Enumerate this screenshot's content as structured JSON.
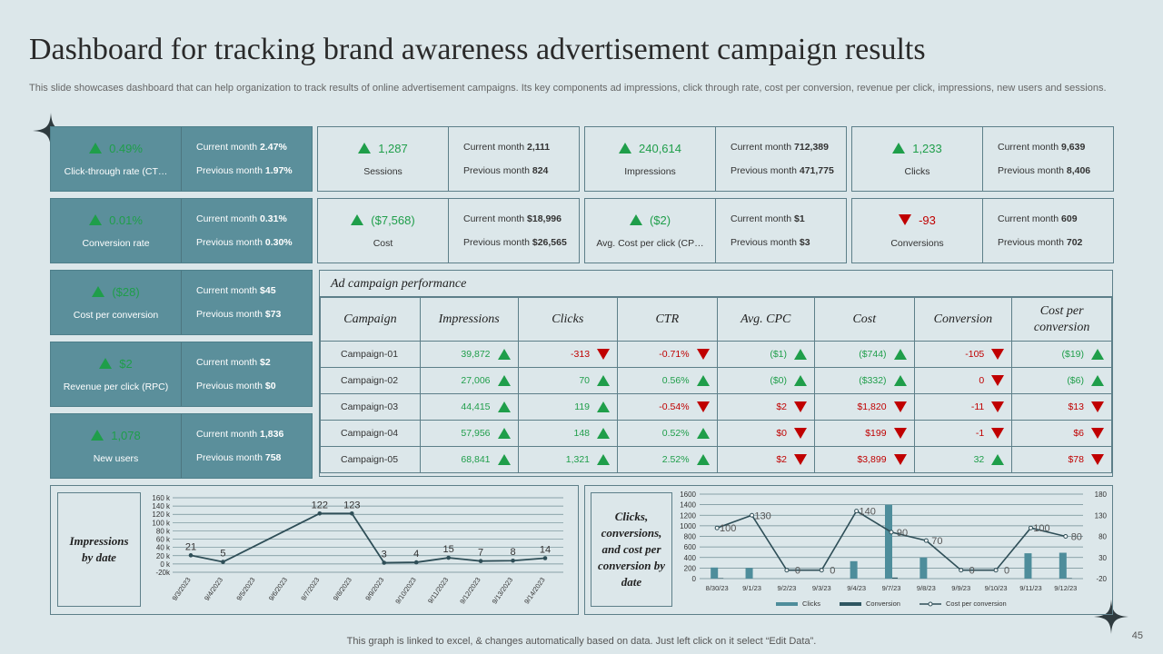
{
  "title": "Dashboard for tracking brand awareness advertisement campaign results",
  "subtitle": "This slide showcases dashboard that can help organization to track results of online advertisement campaigns. Its key components ad impressions, click through rate, cost per conversion, revenue per click, impressions, new users and sessions.",
  "kpi_left": [
    {
      "value": "0.49%",
      "label": "Click-through rate (CT…",
      "current": "Current month ",
      "current_val": "2.47%",
      "previous": "Previous month ",
      "previous_val": "1.97%",
      "trend": "up"
    },
    {
      "value": "0.01%",
      "label": "Conversion rate",
      "current": "Current month ",
      "current_val": "0.31%",
      "previous": "Previous month ",
      "previous_val": "0.30%",
      "trend": "up"
    },
    {
      "value": "($28)",
      "label": "Cost per conversion",
      "current": "Current month ",
      "current_val": "$45",
      "previous": "Previous month ",
      "previous_val": "$73",
      "trend": "up"
    },
    {
      "value": "$2",
      "label": "Revenue per click (RPC)",
      "current": "Current month ",
      "current_val": "$2",
      "previous": "Previous month ",
      "previous_val": "$0",
      "trend": "up"
    },
    {
      "value": "1,078",
      "label": "New users",
      "current": "Current month ",
      "current_val": "1,836",
      "previous": "Previous month ",
      "previous_val": "758",
      "trend": "up"
    }
  ],
  "kpi_top": [
    {
      "value": "1,287",
      "label": "Sessions",
      "current": "Current month ",
      "current_val": "2,111",
      "previous": "Previous month ",
      "previous_val": "824",
      "trend": "up"
    },
    {
      "value": "240,614",
      "label": "Impressions",
      "current": "Current month ",
      "current_val": "712,389",
      "previous": "Previous month ",
      "previous_val": "471,775",
      "trend": "up"
    },
    {
      "value": "1,233",
      "label": "Clicks",
      "current": "Current month ",
      "current_val": "9,639",
      "previous": "Previous month ",
      "previous_val": "8,406",
      "trend": "up"
    },
    {
      "value": "($7,568)",
      "label": "Cost",
      "current": "Current month ",
      "current_val": "$18,996",
      "previous": "Previous month ",
      "previous_val": "$26,565",
      "trend": "up"
    },
    {
      "value": "($2)",
      "label": "Avg. Cost per click (CP…",
      "current": "Current month ",
      "current_val": "$1",
      "previous": "Previous month ",
      "previous_val": "$3",
      "trend": "up"
    },
    {
      "value": "-93",
      "label": "Conversions",
      "current": "Current month ",
      "current_val": "609",
      "previous": "Previous month ",
      "previous_val": "702",
      "trend": "down"
    }
  ],
  "table": {
    "caption": "Ad campaign performance",
    "headers": [
      "Campaign",
      "Impressions",
      "Clicks",
      "CTR",
      "Avg. CPC",
      "Cost",
      "Conversion",
      "Cost per conversion"
    ],
    "rows": [
      [
        [
          "Campaign-01",
          ""
        ],
        [
          "39,872",
          "up"
        ],
        [
          "-313",
          "down"
        ],
        [
          "-0.71%",
          "down"
        ],
        [
          "($1)",
          "up"
        ],
        [
          "($744)",
          "up"
        ],
        [
          "-105",
          "down"
        ],
        [
          "($19)",
          "up"
        ]
      ],
      [
        [
          "Campaign-02",
          ""
        ],
        [
          "27,006",
          "up"
        ],
        [
          "70",
          "up"
        ],
        [
          "0.56%",
          "up"
        ],
        [
          "($0)",
          "up"
        ],
        [
          "($332)",
          "up"
        ],
        [
          "0",
          "down"
        ],
        [
          "($6)",
          "up"
        ]
      ],
      [
        [
          "Campaign-03",
          ""
        ],
        [
          "44,415",
          "up"
        ],
        [
          "119",
          "up"
        ],
        [
          "-0.54%",
          "down"
        ],
        [
          "$2",
          "down"
        ],
        [
          "$1,820",
          "down"
        ],
        [
          "-11",
          "down"
        ],
        [
          "$13",
          "down"
        ]
      ],
      [
        [
          "Campaign-04",
          ""
        ],
        [
          "57,956",
          "up"
        ],
        [
          "148",
          "up"
        ],
        [
          "0.52%",
          "up"
        ],
        [
          "$0",
          "down"
        ],
        [
          "$199",
          "down"
        ],
        [
          "-1",
          "down"
        ],
        [
          "$6",
          "down"
        ]
      ],
      [
        [
          "Campaign-05",
          ""
        ],
        [
          "68,841",
          "up"
        ],
        [
          "1,321",
          "up"
        ],
        [
          "2.52%",
          "up"
        ],
        [
          "$2",
          "down"
        ],
        [
          "$3,899",
          "down"
        ],
        [
          "32",
          "up"
        ],
        [
          "$78",
          "down"
        ]
      ]
    ]
  },
  "chart1_title": "Impressions by date",
  "chart2_title": "Clicks, conversions, and cost per conversion by date",
  "chart_data": [
    {
      "type": "line",
      "x": [
        "9/3/2023",
        "9/4/2023",
        "9/5/2023",
        "9/6/2023",
        "9/7/2023",
        "9/8/2023",
        "9/9/2023",
        "9/10/2023",
        "9/11/2023",
        "9/12/2023",
        "9/13/2023",
        "9/14/2023"
      ],
      "values": [
        21,
        5,
        null,
        null,
        122,
        123,
        3,
        4,
        15,
        7,
        8,
        14
      ],
      "point_values": [
        21,
        5,
        122,
        123,
        3,
        4,
        15,
        7,
        8,
        14
      ],
      "point_x": [
        "9/3/2023",
        "9/4/2023",
        "9/7/2023",
        "9/8/2023",
        "9/9/2023",
        "9/10/2023",
        "9/11/2023",
        "9/12/2023",
        "9/13/2023",
        "9/14/2023"
      ],
      "line_values": [
        21,
        5,
        122,
        123,
        3,
        4,
        15,
        7,
        8,
        14
      ],
      "ytick_labels": [
        "160 k",
        "140 k",
        "120 k",
        "100 k",
        "80 k",
        "60 k",
        "40 k",
        "20 k",
        "0 k",
        "-20k"
      ],
      "ylim": [
        -20,
        160
      ]
    },
    {
      "type": "bar",
      "categories": [
        "8/30/23",
        "9/1/23",
        "9/2/23",
        "9/3/23",
        "9/4/23",
        "9/7/23",
        "9/8/23",
        "9/9/23",
        "9/10/23",
        "9/11/23",
        "9/12/23"
      ],
      "series": [
        {
          "name": "Clicks",
          "values": [
            210,
            200,
            0,
            0,
            330,
            1400,
            400,
            0,
            0,
            480,
            490
          ]
        },
        {
          "name": "Conversion",
          "values": [
            10,
            0,
            0,
            0,
            0,
            20,
            0,
            0,
            0,
            0,
            10
          ]
        },
        {
          "name": "Cost per conversion",
          "values": [
            100,
            130,
            0,
            0,
            140,
            90,
            70,
            0,
            0,
            100,
            80
          ]
        }
      ],
      "line_labels": [
        "100",
        "130",
        "0",
        "0",
        "140",
        "90",
        "70",
        "0",
        "0",
        "100",
        "80"
      ],
      "y_left_ticks": [
        "1600",
        "1400",
        "1200",
        "1000",
        "800",
        "600",
        "400",
        "200",
        "0"
      ],
      "y_right_ticks": [
        "180",
        "130",
        "80",
        "30",
        "-20"
      ],
      "ylim_left": [
        0,
        1600
      ],
      "ylim_right": [
        -20,
        180
      ]
    }
  ],
  "footer": "This graph is linked to excel, & changes automatically based on data. Just left click on it select “Edit Data”.",
  "page_number": "45",
  "colors": {
    "teal": "#5b8f9b",
    "green": "#1f9e4a",
    "red": "#c00000",
    "line": "#2e4e57",
    "bar": "#4e8d9b"
  }
}
